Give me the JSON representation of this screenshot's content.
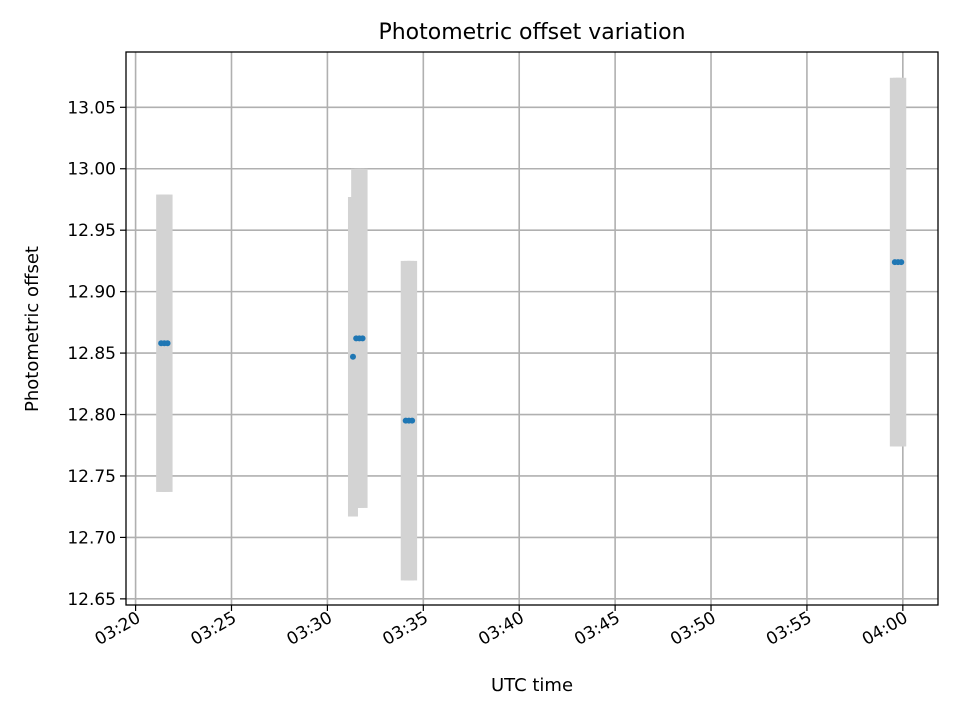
{
  "chart_data": {
    "type": "scatter",
    "title": "Photometric offset variation",
    "xlabel": "UTC time",
    "ylabel": "Photometric offset",
    "x_ticks": [
      "03:20",
      "03:25",
      "03:30",
      "03:35",
      "03:40",
      "03:45",
      "03:50",
      "03:55",
      "04:00"
    ],
    "y_ticks": [
      "12.65",
      "12.70",
      "12.75",
      "12.80",
      "12.85",
      "12.90",
      "12.95",
      "13.00",
      "13.05"
    ],
    "xlim": [
      "03:19:30",
      "04:01:50"
    ],
    "ylim": [
      12.645,
      13.095
    ],
    "grid": true,
    "points": [
      {
        "x": "03:21:20",
        "y": 12.858,
        "err": 0.121
      },
      {
        "x": "03:21:30",
        "y": 12.858,
        "err": 0.121
      },
      {
        "x": "03:21:40",
        "y": 12.858,
        "err": 0.121
      },
      {
        "x": "03:31:20",
        "y": 12.847,
        "err": 0.13
      },
      {
        "x": "03:31:30",
        "y": 12.862,
        "err": 0.138
      },
      {
        "x": "03:31:40",
        "y": 12.862,
        "err": 0.138
      },
      {
        "x": "03:31:50",
        "y": 12.862,
        "err": 0.138
      },
      {
        "x": "03:34:05",
        "y": 12.795,
        "err": 0.13
      },
      {
        "x": "03:34:15",
        "y": 12.795,
        "err": 0.13
      },
      {
        "x": "03:34:25",
        "y": 12.795,
        "err": 0.13
      },
      {
        "x": "03:59:35",
        "y": 12.924,
        "err": 0.15
      },
      {
        "x": "03:59:45",
        "y": 12.924,
        "err": 0.15
      },
      {
        "x": "03:59:55",
        "y": 12.924,
        "err": 0.15
      }
    ],
    "colors": {
      "marker": "#1f77b4",
      "errorbar": "#d3d3d3",
      "grid": "#b0b0b0"
    }
  }
}
